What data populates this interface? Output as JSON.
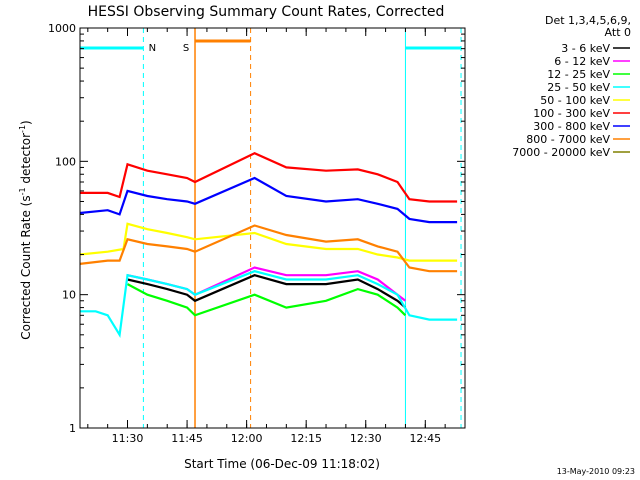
{
  "chart_data": {
    "type": "line",
    "title": "HESSI Observing Summary Count Rates, Corrected",
    "xlabel": "Start Time (06-Dec-09 11:18:02)",
    "ylabel": "Corrected Count Rate (s",
    "ylabel_sup": "-1",
    "ylabel_mid": " detector",
    "ylabel_sup2": "-1",
    "ylabel_end": ")",
    "y_scale": "log",
    "ylim": [
      1,
      1000
    ],
    "xlim": [
      "11:18:02",
      "12:55:00"
    ],
    "y_ticks": [
      "1000",
      "100",
      "10",
      "1"
    ],
    "x_ticks": [
      "11:30",
      "11:45",
      "12:00",
      "12:15",
      "12:30",
      "12:45"
    ],
    "legend_header": [
      "Det 1,3,4,5,6,9,",
      "Att 0"
    ],
    "legend_placement": "right",
    "footer_date": "13-May-2010 09:23",
    "flag_labels": {
      "night": "N",
      "saa": "S"
    },
    "flags": {
      "night": {
        "color": "#00ffff",
        "intervals": [
          [
            "11:18:02",
            "11:34:00"
          ],
          [
            "12:40:00",
            "12:54:00"
          ]
        ]
      },
      "saa": {
        "color": "#ff8000",
        "intervals": [
          [
            "11:47:00",
            "12:01:00"
          ]
        ]
      }
    },
    "series": [
      {
        "name": "3 - 6 keV",
        "color": "#000000",
        "x": [
          "11:30",
          "11:35",
          "11:40",
          "11:45",
          "11:47",
          "12:02",
          "12:10",
          "12:20",
          "12:28",
          "12:33",
          "12:38",
          "12:40"
        ],
        "y": [
          13,
          12,
          11,
          10,
          9,
          14,
          12,
          12,
          13,
          11,
          9,
          8
        ]
      },
      {
        "name": "6 - 12 keV",
        "color": "#ff00ff",
        "x": [
          "11:30",
          "11:35",
          "11:40",
          "11:45",
          "11:47",
          "12:02",
          "12:10",
          "12:20",
          "12:28",
          "12:33",
          "12:38",
          "12:40"
        ],
        "y": [
          14,
          13,
          12,
          11,
          10,
          16,
          14,
          14,
          15,
          13,
          10,
          9
        ]
      },
      {
        "name": "12 - 25 keV",
        "color": "#00ff00",
        "x": [
          "11:30",
          "11:35",
          "11:40",
          "11:45",
          "11:47",
          "12:02",
          "12:10",
          "12:20",
          "12:28",
          "12:33",
          "12:38",
          "12:40"
        ],
        "y": [
          12,
          10,
          9,
          8,
          7,
          10,
          8,
          9,
          11,
          10,
          8,
          7
        ]
      },
      {
        "name": "25 - 50 keV",
        "color": "#00ffff",
        "x": [
          "11:18",
          "11:22",
          "11:25",
          "11:28",
          "11:30",
          "11:35",
          "11:40",
          "11:45",
          "11:47",
          "12:02",
          "12:10",
          "12:20",
          "12:28",
          "12:33",
          "12:38",
          "12:41",
          "12:46",
          "12:53"
        ],
        "y": [
          7.5,
          7.5,
          7,
          5,
          14,
          13,
          12,
          11,
          10,
          15,
          13,
          13,
          14,
          12,
          10,
          7,
          6.5,
          6.5
        ]
      },
      {
        "name": "50 - 100 keV",
        "color": "#ffff00",
        "x": [
          "11:18",
          "11:25",
          "11:29",
          "11:30",
          "11:35",
          "11:40",
          "11:45",
          "11:47",
          "12:02",
          "12:10",
          "12:20",
          "12:28",
          "12:33",
          "12:38",
          "12:41",
          "12:46",
          "12:53"
        ],
        "y": [
          20,
          21,
          22,
          34,
          31,
          29,
          27,
          26,
          29,
          24,
          22,
          22,
          20,
          19,
          18,
          18,
          18
        ]
      },
      {
        "name": "100 - 300 keV",
        "color": "#ff0000",
        "x": [
          "11:18",
          "11:25",
          "11:28",
          "11:30",
          "11:35",
          "11:40",
          "11:45",
          "11:47",
          "12:02",
          "12:10",
          "12:20",
          "12:28",
          "12:33",
          "12:38",
          "12:41",
          "12:46",
          "12:53"
        ],
        "y": [
          58,
          58,
          54,
          95,
          85,
          80,
          75,
          70,
          115,
          90,
          85,
          87,
          80,
          70,
          52,
          50,
          50
        ]
      },
      {
        "name": "300 - 800 keV",
        "color": "#0000ff",
        "x": [
          "11:18",
          "11:25",
          "11:28",
          "11:30",
          "11:35",
          "11:40",
          "11:45",
          "11:47",
          "12:02",
          "12:10",
          "12:20",
          "12:28",
          "12:33",
          "12:38",
          "12:41",
          "12:46",
          "12:53"
        ],
        "y": [
          41,
          43,
          40,
          60,
          55,
          52,
          50,
          48,
          75,
          55,
          50,
          52,
          48,
          44,
          37,
          35,
          35
        ]
      },
      {
        "name": "800 - 7000 keV",
        "color": "#ff8000",
        "x": [
          "11:18",
          "11:25",
          "11:28",
          "11:30",
          "11:35",
          "11:40",
          "11:45",
          "11:47",
          "12:02",
          "12:10",
          "12:20",
          "12:28",
          "12:33",
          "12:38",
          "12:41",
          "12:46",
          "12:53"
        ],
        "y": [
          17,
          18,
          18,
          26,
          24,
          23,
          22,
          21,
          33,
          28,
          25,
          26,
          23,
          21,
          16,
          15,
          15
        ]
      },
      {
        "name": "7000 - 20000 keV",
        "color": "#808000",
        "x": [],
        "y": []
      }
    ]
  }
}
